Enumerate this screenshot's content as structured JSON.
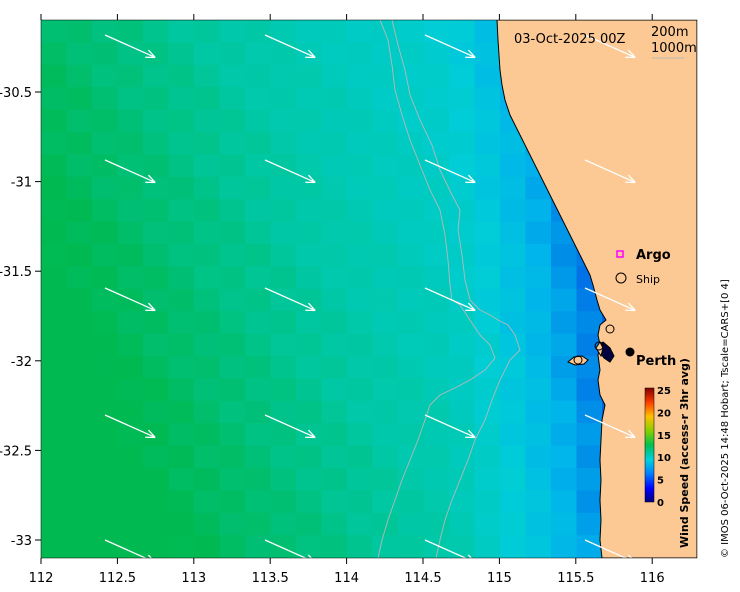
{
  "map": {
    "date_label": "03-Oct-2025 00Z",
    "depth_contours": [
      "200m",
      "1000m"
    ],
    "land_color": "#fcc995",
    "x_ticks": [
      "112",
      "112.5",
      "113",
      "113.5",
      "114",
      "114.5",
      "115",
      "115.5",
      "116"
    ],
    "y_ticks": [
      "-30.5",
      "-31",
      "-31.5",
      "-32",
      "-32.5",
      "-33"
    ],
    "legend": {
      "argo_label": "Argo",
      "ship_label": "Ship",
      "argo_color": "#ff00ff"
    },
    "city_label": "Perth",
    "colorbar": {
      "title": "Wind Speed (access-r 3hr avg)",
      "ticks": [
        "25",
        "20",
        "15",
        "10",
        "5",
        "0"
      ],
      "range": [
        0,
        25
      ]
    },
    "credit": "© IMOS 06-Oct-2025 14:48 Hobart; Tscale=CARS+[0 4]"
  }
}
